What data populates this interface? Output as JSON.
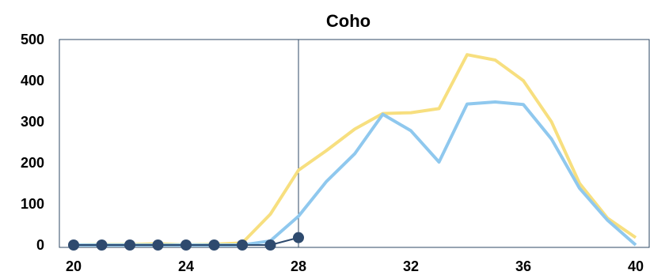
{
  "chart_data": {
    "type": "line",
    "title": "Coho",
    "xlabel": "",
    "ylabel": "",
    "xlim": [
      20,
      40
    ],
    "ylim": [
      0,
      500
    ],
    "x_ticks": [
      20,
      24,
      28,
      32,
      36,
      40
    ],
    "y_ticks": [
      0,
      100,
      200,
      300,
      400,
      500
    ],
    "grid": false,
    "legend": "none",
    "marker_line_x": 28,
    "series": [
      {
        "color": "#f7df7f",
        "marker": "none",
        "x": [
          20,
          21,
          22,
          23,
          24,
          25,
          26,
          27,
          28,
          29,
          30,
          31,
          32,
          33,
          34,
          35,
          36,
          37,
          38,
          39,
          40
        ],
        "y": [
          0,
          1,
          1,
          3,
          0,
          2,
          5,
          75,
          182,
          230,
          282,
          320,
          322,
          332,
          463,
          450,
          400,
          300,
          150,
          65,
          18
        ]
      },
      {
        "color": "#8fc8ee",
        "marker": "none",
        "x": [
          20,
          21,
          22,
          23,
          24,
          25,
          26,
          27,
          28,
          29,
          30,
          31,
          32,
          33,
          34,
          35,
          36,
          37,
          38,
          39,
          40
        ],
        "y": [
          0,
          0,
          0,
          0,
          0,
          0,
          0,
          10,
          70,
          155,
          222,
          318,
          278,
          202,
          343,
          348,
          342,
          258,
          138,
          60,
          0
        ]
      },
      {
        "color": "#2e4a6e",
        "marker": "circle",
        "x": [
          20,
          21,
          22,
          23,
          24,
          25,
          26,
          27,
          28
        ],
        "y": [
          0,
          0,
          0,
          0,
          0,
          0,
          0,
          0,
          18
        ]
      }
    ]
  }
}
